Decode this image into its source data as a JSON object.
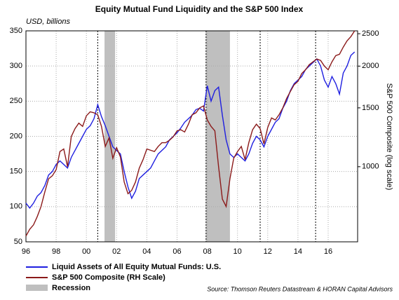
{
  "chart_data": {
    "type": "line",
    "title": "Equity Mutual Fund Liquidity and the S&P 500 Index",
    "y_unit_note": "USD, billions",
    "y2_label": "S&P 500 Composite (log scale)",
    "source": "Source: Thomson Reuters Datastream & HORAN Capital Advisors",
    "x": [
      1996,
      1996.25,
      1996.5,
      1996.75,
      1997,
      1997.25,
      1997.5,
      1997.75,
      1998,
      1998.25,
      1998.5,
      1998.75,
      1999,
      1999.25,
      1999.5,
      1999.75,
      2000,
      2000.25,
      2000.5,
      2000.75,
      2001,
      2001.25,
      2001.5,
      2001.75,
      2002,
      2002.25,
      2002.5,
      2002.75,
      2003,
      2003.25,
      2003.5,
      2003.75,
      2004,
      2004.25,
      2004.5,
      2004.75,
      2005,
      2005.25,
      2005.5,
      2005.75,
      2006,
      2006.25,
      2006.5,
      2006.75,
      2007,
      2007.25,
      2007.5,
      2007.75,
      2008,
      2008.25,
      2008.5,
      2008.75,
      2009,
      2009.25,
      2009.5,
      2009.75,
      2010,
      2010.25,
      2010.5,
      2010.75,
      2011,
      2011.25,
      2011.5,
      2011.75,
      2012,
      2012.25,
      2012.5,
      2012.75,
      2013,
      2013.25,
      2013.5,
      2013.75,
      2014,
      2014.25,
      2014.5,
      2014.75,
      2015,
      2015.25,
      2015.5,
      2015.75,
      2016,
      2016.25,
      2016.5,
      2016.75,
      2017,
      2017.25,
      2017.5,
      2017.75
    ],
    "series": [
      {
        "name": "Liquid Assets of All Equity Mutual Funds: U.S.",
        "color": "#1f1fe0",
        "axis": "y",
        "values": [
          105,
          98,
          105,
          115,
          120,
          130,
          145,
          150,
          160,
          165,
          160,
          155,
          170,
          180,
          190,
          200,
          210,
          215,
          225,
          245,
          228,
          215,
          200,
          185,
          180,
          175,
          150,
          128,
          112,
          122,
          140,
          145,
          150,
          155,
          165,
          175,
          180,
          185,
          195,
          200,
          205,
          212,
          220,
          225,
          230,
          238,
          240,
          236,
          272,
          250,
          265,
          270,
          230,
          195,
          175,
          170,
          175,
          170,
          165,
          175,
          190,
          200,
          195,
          185,
          200,
          210,
          220,
          225,
          240,
          250,
          265,
          275,
          280,
          285,
          295,
          300,
          305,
          310,
          300,
          280,
          270,
          285,
          275,
          260,
          290,
          300,
          315,
          320
        ]
      },
      {
        "name": "S&P 500 Composite (RH Scale)",
        "color": "#8b1a1a",
        "axis": "y2",
        "values": [
          620,
          650,
          670,
          710,
          760,
          840,
          920,
          940,
          980,
          1110,
          1130,
          1000,
          1230,
          1300,
          1350,
          1320,
          1420,
          1460,
          1450,
          1430,
          1320,
          1150,
          1220,
          1060,
          1140,
          1070,
          900,
          830,
          850,
          900,
          990,
          1050,
          1130,
          1120,
          1110,
          1150,
          1180,
          1180,
          1200,
          1230,
          1280,
          1290,
          1270,
          1340,
          1430,
          1450,
          1500,
          1520,
          1380,
          1320,
          1280,
          1000,
          800,
          760,
          920,
          1060,
          1110,
          1150,
          1050,
          1180,
          1290,
          1340,
          1300,
          1170,
          1310,
          1400,
          1380,
          1430,
          1500,
          1600,
          1680,
          1760,
          1800,
          1900,
          1950,
          2020,
          2060,
          2100,
          2080,
          2000,
          1950,
          2060,
          2150,
          2170,
          2280,
          2380,
          2450,
          2550
        ]
      }
    ],
    "recession": {
      "name": "Recession",
      "color": "#bfbfbf",
      "spans": [
        [
          2001.2,
          2001.9
        ],
        [
          2007.9,
          2009.5
        ]
      ]
    },
    "dashed_lines": [
      2000.75,
      2007.92,
      2011.5,
      2015.17
    ],
    "xlim": [
      1996,
      2017.95
    ],
    "xticks": [
      {
        "value": 1996,
        "label": "96"
      },
      {
        "value": 1998,
        "label": "98"
      },
      {
        "value": 2000,
        "label": "00"
      },
      {
        "value": 2002,
        "label": "02"
      },
      {
        "value": 2004,
        "label": "04"
      },
      {
        "value": 2006,
        "label": "06"
      },
      {
        "value": 2008,
        "label": "08"
      },
      {
        "value": 2010,
        "label": "10"
      },
      {
        "value": 2012,
        "label": "12"
      },
      {
        "value": 2014,
        "label": "14"
      },
      {
        "value": 2016,
        "label": "16"
      }
    ],
    "ylim": [
      50,
      350
    ],
    "yticks": [
      50,
      100,
      150,
      200,
      250,
      300,
      350
    ],
    "y2lim": [
      596,
      2550
    ],
    "y2ticks": [
      1000,
      1500,
      2000,
      2500
    ],
    "y2_log": true,
    "grid": true
  }
}
